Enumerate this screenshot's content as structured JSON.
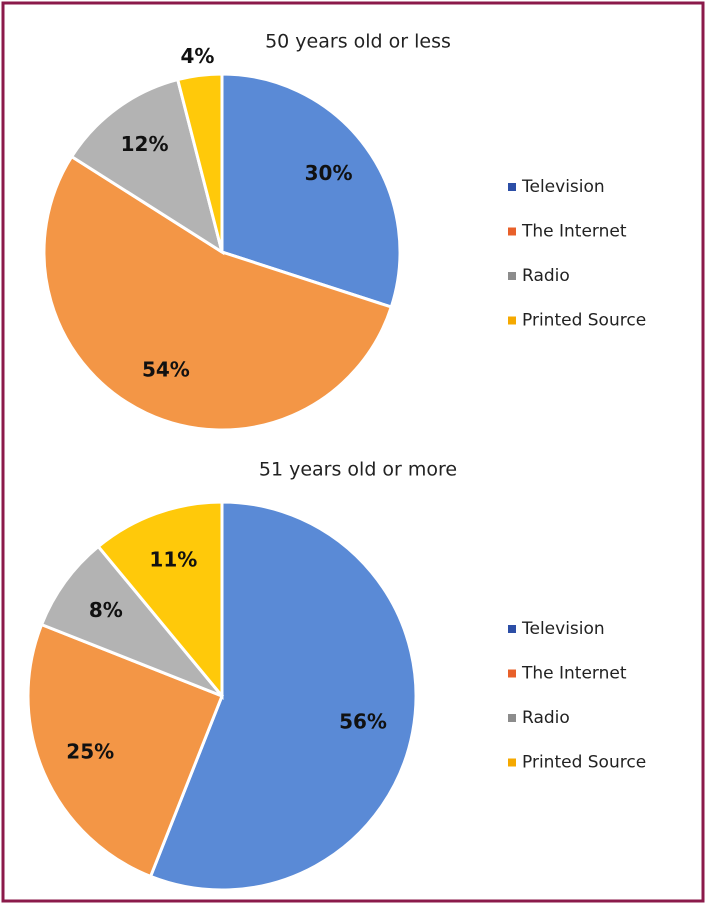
{
  "chart_data": [
    {
      "type": "pie",
      "title": "50 years old or less",
      "categories": [
        "Television",
        "The Internet",
        "Radio",
        "Printed Source"
      ],
      "values": [
        30,
        54,
        12,
        4
      ],
      "value_labels": [
        "30%",
        "54%",
        "12%",
        "4%"
      ],
      "colors": [
        "#5a8ad6",
        "#f39646",
        "#b3b3b3",
        "#ffc90a"
      ],
      "legend_colors": [
        "#2c4ea6",
        "#e8602a",
        "#8c8c8c",
        "#f5a900"
      ],
      "legend": "right"
    },
    {
      "type": "pie",
      "title": "51 years old or more",
      "categories": [
        "Television",
        "The Internet",
        "Radio",
        "Printed Source"
      ],
      "values": [
        56,
        25,
        8,
        11
      ],
      "value_labels": [
        "56%",
        "25%",
        "8%",
        "11%"
      ],
      "colors": [
        "#5a8ad6",
        "#f39646",
        "#b3b3b3",
        "#ffc90a"
      ],
      "legend_colors": [
        "#2c4ea6",
        "#e8602a",
        "#8c8c8c",
        "#f5a900"
      ],
      "legend": "right"
    }
  ]
}
